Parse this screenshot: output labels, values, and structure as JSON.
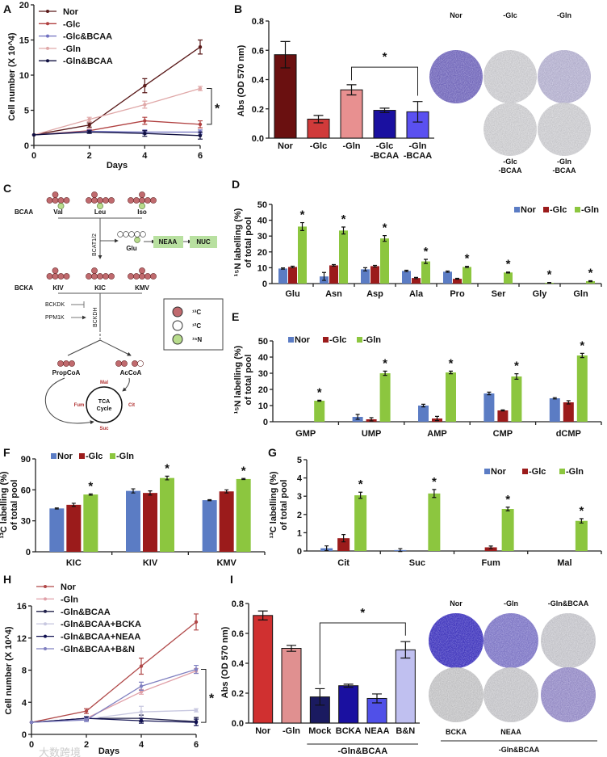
{
  "panels": [
    "A",
    "B",
    "C",
    "D",
    "E",
    "F",
    "G",
    "H",
    "I"
  ],
  "watermark": "大数跨境",
  "chart_data": [
    {
      "panel": "A",
      "type": "line",
      "xlabel": "Days",
      "ylabel": "Cell number (X 10^4)",
      "x": [
        0,
        2,
        4,
        6
      ],
      "xticklabels": [
        "0",
        "2",
        "4",
        "6"
      ],
      "ylim": [
        0,
        20
      ],
      "yticks": [
        0,
        5,
        10,
        15,
        20
      ],
      "yticklabels": [
        "0",
        "5",
        "10",
        "15",
        "20"
      ],
      "significance": "*",
      "series": [
        {
          "name": "Nor",
          "values": [
            1.5,
            2.9,
            8.5,
            14.0
          ],
          "errors": [
            0,
            0.3,
            1.0,
            1.0
          ],
          "color": "#5a1a1a"
        },
        {
          "name": "-Glc",
          "values": [
            1.5,
            2.1,
            3.5,
            3.0
          ],
          "errors": [
            0,
            0.2,
            0.5,
            0.5
          ],
          "color": "#b04040"
        },
        {
          "name": "-Glc&BCAA",
          "values": [
            1.5,
            2.0,
            1.9,
            1.9
          ],
          "errors": [
            0,
            0.2,
            0.3,
            0.3
          ],
          "color": "#7070c0"
        },
        {
          "name": "-Gln",
          "values": [
            1.5,
            3.7,
            5.8,
            8.1
          ],
          "errors": [
            0,
            0.3,
            0.5,
            0.3
          ],
          "color": "#e0a8a8"
        },
        {
          "name": "-Gln&BCAA",
          "values": [
            1.5,
            1.9,
            1.7,
            1.4
          ],
          "errors": [
            0,
            0.2,
            0.4,
            0.5
          ],
          "color": "#101040"
        }
      ]
    },
    {
      "panel": "B",
      "type": "bar",
      "ylabel": "Abs (OD 570 nm)",
      "ylim": [
        0,
        0.8
      ],
      "yticks": [
        0,
        0.2,
        0.4,
        0.6,
        0.8
      ],
      "yticklabels": [
        "0.0",
        "0.2",
        "0.4",
        "0.6",
        "0.8"
      ],
      "category_lines": [
        [
          "Nor"
        ],
        [
          "-Glc"
        ],
        [
          "-Gln"
        ],
        [
          "-Glc",
          "-BCAA"
        ],
        [
          "-Gln",
          "-BCAA"
        ]
      ],
      "values": [
        0.57,
        0.13,
        0.33,
        0.19,
        0.18
      ],
      "errors": [
        0.09,
        0.025,
        0.035,
        0.015,
        0.07
      ],
      "colors": [
        "#6a1010",
        "#d03a3a",
        "#e89090",
        "#1a10a0",
        "#5a50f0"
      ],
      "significance": {
        "from": 2,
        "to": 4,
        "label": "*"
      }
    },
    {
      "panel": "D",
      "type": "bar",
      "ylabel": [
        "¹⁵N labelling (%)",
        "of total pool"
      ],
      "ylim": [
        0,
        50
      ],
      "yticks": [
        0,
        10,
        20,
        30,
        40,
        50
      ],
      "yticklabels": [
        "0",
        "10",
        "20",
        "30",
        "40",
        "50"
      ],
      "categories": [
        "Glu",
        "Asn",
        "Asp",
        "Ala",
        "Pro",
        "Ser",
        "Gly",
        "Gln"
      ],
      "series": [
        {
          "name": "Nor",
          "values": [
            9.5,
            4.5,
            9,
            8,
            7.5,
            0,
            0,
            0
          ],
          "errors": [
            0.4,
            2.5,
            1,
            0.4,
            0.4,
            0,
            0,
            0
          ],
          "color": "#5b7cc4"
        },
        {
          "name": "-Glc",
          "values": [
            10.5,
            11.5,
            11,
            3.5,
            3,
            0,
            0,
            0
          ],
          "errors": [
            0.5,
            0.5,
            0.5,
            0.4,
            0.3,
            0,
            0,
            0
          ],
          "color": "#9b1b1b"
        },
        {
          "name": "-Gln",
          "values": [
            36,
            33.5,
            28.5,
            14,
            10.5,
            7,
            0.5,
            1.5
          ],
          "errors": [
            2.5,
            2.2,
            1.8,
            1.3,
            0.4,
            0.3,
            0.2,
            0.3
          ],
          "color": "#8cc63f"
        }
      ],
      "significant": [
        true,
        true,
        true,
        true,
        true,
        true,
        true,
        true
      ],
      "star": "*"
    },
    {
      "panel": "E",
      "type": "bar",
      "ylabel": [
        "¹⁵N labelling (%)",
        "of total pool"
      ],
      "ylim": [
        0,
        50
      ],
      "yticks": [
        0,
        10,
        20,
        30,
        40,
        50
      ],
      "yticklabels": [
        "0",
        "10",
        "20",
        "30",
        "40",
        "50"
      ],
      "categories": [
        "GMP",
        "UMP",
        "AMP",
        "CMP",
        "dCMP"
      ],
      "series": [
        {
          "name": "Nor",
          "values": [
            0,
            3,
            10,
            17.5,
            14.5
          ],
          "errors": [
            0,
            1.5,
            0.8,
            0.8,
            0.4
          ],
          "color": "#5b7cc4"
        },
        {
          "name": "-Glc",
          "values": [
            0,
            1.5,
            2,
            7,
            12
          ],
          "errors": [
            0,
            1,
            1.3,
            0.3,
            1
          ],
          "color": "#9b1b1b"
        },
        {
          "name": "-Gln",
          "values": [
            13,
            30,
            30.5,
            28,
            41
          ],
          "errors": [
            0.3,
            1.3,
            0.8,
            1.7,
            1.3
          ],
          "color": "#8cc63f"
        }
      ],
      "significant": [
        true,
        true,
        true,
        true,
        true
      ],
      "star": "*"
    },
    {
      "panel": "F",
      "type": "bar",
      "ylabel": [
        "¹³C labelling (%)",
        "of total pool"
      ],
      "ylim": [
        0,
        90
      ],
      "yticks": [
        0,
        30,
        60,
        90
      ],
      "yticklabels": [
        "0",
        "30",
        "60",
        "90"
      ],
      "categories": [
        "KIC",
        "KIV",
        "KMV"
      ],
      "series": [
        {
          "name": "Nor",
          "values": [
            42,
            59,
            50
          ],
          "errors": [
            0.5,
            2,
            0.5
          ],
          "color": "#5b7cc4"
        },
        {
          "name": "-Glc",
          "values": [
            45.5,
            57,
            58.5
          ],
          "errors": [
            1.5,
            2,
            1.5
          ],
          "color": "#9b1b1b"
        },
        {
          "name": "-Gln",
          "values": [
            55.5,
            71.5,
            70.5
          ],
          "errors": [
            0.6,
            1.8,
            0.5
          ],
          "color": "#8cc63f"
        }
      ],
      "significant": [
        true,
        true,
        true
      ],
      "star": "*"
    },
    {
      "panel": "G",
      "type": "bar",
      "ylabel": [
        "¹³C labelling (%)",
        "of total pool"
      ],
      "ylim": [
        0,
        5
      ],
      "yticks": [
        0,
        1,
        2,
        3,
        4,
        5
      ],
      "yticklabels": [
        "0",
        "1",
        "2",
        "3",
        "4",
        "5"
      ],
      "categories": [
        "Cit",
        "Suc",
        "Fum",
        "Mal"
      ],
      "series": [
        {
          "name": "Nor",
          "values": [
            0.15,
            0.05,
            0,
            0
          ],
          "errors": [
            0.13,
            0.08,
            0,
            0
          ],
          "color": "#5b7cc4"
        },
        {
          "name": "-Glc",
          "values": [
            0.7,
            0,
            0.2,
            0
          ],
          "errors": [
            0.2,
            0,
            0.07,
            0
          ],
          "color": "#9b1b1b"
        },
        {
          "name": "-Gln",
          "values": [
            3.05,
            3.15,
            2.3,
            1.65
          ],
          "errors": [
            0.17,
            0.22,
            0.1,
            0.12
          ],
          "color": "#8cc63f"
        }
      ],
      "significant": [
        true,
        true,
        true,
        true
      ],
      "star": "*"
    },
    {
      "panel": "H",
      "type": "line",
      "xlabel": "Days",
      "ylabel": "Cell number (X 10^4)",
      "x": [
        0,
        2,
        4,
        6
      ],
      "xticklabels": [
        "0",
        "2",
        "4",
        "6"
      ],
      "ylim": [
        0,
        16
      ],
      "yticks": [
        0,
        4,
        8,
        12,
        16
      ],
      "yticklabels": [
        "0",
        "4",
        "8",
        "12",
        "16"
      ],
      "significance": "*",
      "series": [
        {
          "name": "Nor",
          "values": [
            1.5,
            2.9,
            8.5,
            14.0
          ],
          "errors": [
            0,
            0.3,
            1.0,
            1.0
          ],
          "color": "#b04848"
        },
        {
          "name": "-Gln",
          "values": [
            1.5,
            2.0,
            5.3,
            7.9
          ],
          "errors": [
            0,
            0.2,
            0.3,
            0.3
          ],
          "color": "#e0a0a8"
        },
        {
          "name": "-Gln&BCAA",
          "values": [
            1.5,
            2.0,
            2.0,
            1.6
          ],
          "errors": [
            0,
            0.2,
            0.4,
            0.5
          ],
          "color": "#20204a"
        },
        {
          "name": "-Gln&BCAA+BCKA",
          "values": [
            1.5,
            1.9,
            2.8,
            3.0
          ],
          "errors": [
            0,
            0.2,
            0.7,
            0.2
          ],
          "color": "#c8c8e0"
        },
        {
          "name": "-Gln&BCAA+NEAA",
          "values": [
            1.5,
            2.0,
            1.7,
            1.5
          ],
          "errors": [
            0,
            0.2,
            0.3,
            0.4
          ],
          "color": "#101050"
        },
        {
          "name": "-Gln&BCAA+B&N",
          "values": [
            1.5,
            1.8,
            6.0,
            8.1
          ],
          "errors": [
            0,
            0.2,
            0.5,
            0.5
          ],
          "color": "#8080c0"
        }
      ]
    },
    {
      "panel": "I",
      "type": "bar",
      "ylabel": "Abs (OD 570 nm)",
      "ylim": [
        0,
        0.8
      ],
      "yticks": [
        0,
        0.2,
        0.4,
        0.6,
        0.8
      ],
      "yticklabels": [
        "0.0",
        "0.2",
        "0.4",
        "0.6",
        "0.8"
      ],
      "category_lines": [
        [
          "Nor"
        ],
        [
          "-Gln"
        ],
        [
          "Mock"
        ],
        [
          "BCKA"
        ],
        [
          "NEAA"
        ],
        [
          "B&N"
        ]
      ],
      "group_label": "-Gln&BCAA",
      "values": [
        0.72,
        0.5,
        0.175,
        0.25,
        0.165,
        0.49
      ],
      "errors": [
        0.03,
        0.02,
        0.055,
        0.01,
        0.03,
        0.055
      ],
      "colors": [
        "#d03030",
        "#e09090",
        "#1a1a60",
        "#1a10a0",
        "#5050e8",
        "#c0c0f0"
      ],
      "significance": {
        "from": 2,
        "to": 5,
        "label": "*"
      }
    }
  ],
  "dishes_b": {
    "top_labels": [
      "Nor",
      "-Glc",
      "-Gln"
    ],
    "bottom_labels": [
      [
        "-Glc",
        "-BCAA"
      ],
      [
        "-Gln",
        "-BCAA"
      ]
    ],
    "colors": [
      "#7f74cc",
      "#dcdce0",
      "#c4c0e0",
      "#dddde0",
      "#dcdce0"
    ]
  },
  "dishes_i": {
    "top_labels": [
      "Nor",
      "-Gln",
      "-Gln&BCAA"
    ],
    "bottom_labels": [
      "BCKA",
      "NEAA"
    ],
    "group_label": "-Gln&BCAA",
    "colors": [
      "#4a3fcf",
      "#8c84d8",
      "#d6d6dc",
      "#d4d4d6",
      "#d6d6da",
      "#a49ad8"
    ]
  },
  "diagram_c": {
    "bcaa_label": "BCAA",
    "bcaa": [
      "Val",
      "Leu",
      "Iso"
    ],
    "enzyme1": "BCAT1/2",
    "glu": "Glu",
    "neaa": "NEAA",
    "nuc": "NUC",
    "bcka_label": "BCKA",
    "bcka": [
      "KIV",
      "KIC",
      "KMV"
    ],
    "bckdk": "BCKDK",
    "ppm1k": "PPM1K",
    "enzyme2": "BCKDH",
    "propcoa": "PropCoA",
    "accoa": "AcCoA",
    "tca_line1": "TCA",
    "tca_line2": "Cycle",
    "mal": "Mal",
    "fum": "Fum",
    "cit": "Cit",
    "suc": "Suc",
    "legend": [
      "¹³C",
      "¹²C",
      "¹⁵N"
    ],
    "colors": {
      "c13": "#c06a6e",
      "c12": "#ffffff",
      "n15": "#b8dc8c",
      "box": "#b8e0a0"
    }
  }
}
